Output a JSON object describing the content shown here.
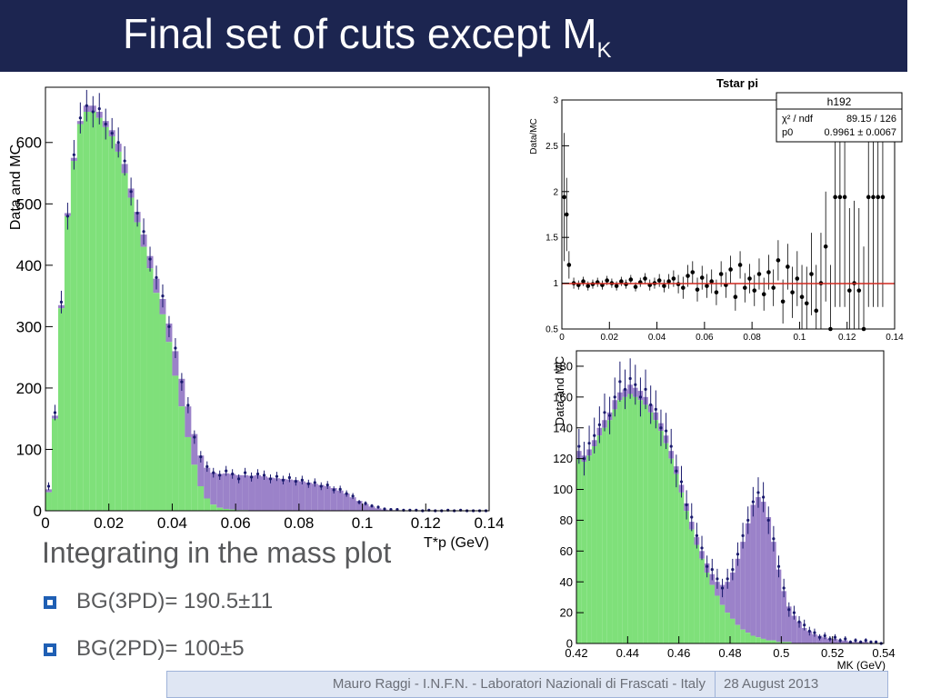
{
  "slide": {
    "title": "Final set of cuts except M",
    "title_sub": "K",
    "text": "Integrating in the mass plot",
    "bullets": [
      "BG(3PD)= 190.5±11",
      "BG(2PD)=  100±5"
    ],
    "footer_left": "Mauro Raggi - I.N.F.N. - Laboratori Nazionali di Frascati - Italy",
    "footer_right": "28 August 2013",
    "colors": {
      "title_bg": "#1c2550",
      "mc_signal": "#7fe07a",
      "mc_background": "#9b82c9",
      "data": "#1a1a6e",
      "fit_line": "#d0281e",
      "bullet": "#1f5fb4"
    }
  },
  "chart_data": [
    {
      "type": "histogram",
      "title": "",
      "xlabel": "T*p (GeV)",
      "ylabel": "Data and MC",
      "xlim": [
        0,
        0.14
      ],
      "ylim": [
        0,
        690
      ],
      "xticks": [
        "0",
        "0.02",
        "0.04",
        "0.06",
        "0.08",
        "0.1",
        "0.12",
        "0.14"
      ],
      "yticks": [
        "0",
        "100",
        "200",
        "300",
        "400",
        "500",
        "600"
      ],
      "x": [
        0.0,
        0.002,
        0.004,
        0.006,
        0.008,
        0.01,
        0.012,
        0.014,
        0.016,
        0.018,
        0.02,
        0.022,
        0.024,
        0.026,
        0.028,
        0.03,
        0.032,
        0.034,
        0.036,
        0.038,
        0.04,
        0.042,
        0.044,
        0.046,
        0.048,
        0.05,
        0.052,
        0.054,
        0.056,
        0.058,
        0.06,
        0.062,
        0.064,
        0.066,
        0.068,
        0.07,
        0.072,
        0.074,
        0.076,
        0.078,
        0.08,
        0.082,
        0.084,
        0.086,
        0.088,
        0.09,
        0.092,
        0.094,
        0.096,
        0.098,
        0.1,
        0.102,
        0.104,
        0.106,
        0.108,
        0.11,
        0.112,
        0.114,
        0.116,
        0.118,
        0.12,
        0.122,
        0.124,
        0.126,
        0.128,
        0.13,
        0.132,
        0.134,
        0.136,
        0.138
      ],
      "series": [
        {
          "name": "",
          "style": "mc-signal",
          "values": [
            30,
            150,
            330,
            480,
            570,
            630,
            650,
            650,
            640,
            625,
            610,
            585,
            550,
            510,
            470,
            430,
            395,
            355,
            320,
            275,
            220,
            170,
            120,
            75,
            40,
            20,
            10,
            5,
            3,
            2,
            1,
            1,
            0,
            0,
            0,
            0,
            0,
            0,
            0,
            0,
            0,
            0,
            0,
            0,
            0,
            0,
            0,
            0,
            0,
            0,
            0,
            0,
            0,
            0,
            0,
            0,
            0,
            0,
            0,
            0,
            0,
            0,
            0,
            0,
            0,
            0,
            0,
            0,
            0,
            0
          ]
        },
        {
          "name": "",
          "style": "mc-total",
          "values": [
            35,
            155,
            335,
            485,
            575,
            635,
            660,
            660,
            650,
            635,
            620,
            598,
            565,
            525,
            487,
            450,
            415,
            378,
            345,
            305,
            260,
            215,
            170,
            125,
            90,
            70,
            62,
            60,
            61,
            60,
            58,
            58,
            57,
            58,
            56,
            54,
            53,
            52,
            51,
            50,
            48,
            46,
            44,
            42,
            40,
            37,
            33,
            28,
            22,
            16,
            11,
            7,
            4,
            2,
            1,
            1,
            0,
            0,
            0,
            0,
            0,
            0,
            0,
            0,
            0,
            0,
            0,
            0,
            0,
            0
          ]
        },
        {
          "name": "",
          "style": "data-points",
          "values": [
            40,
            160,
            340,
            480,
            580,
            640,
            660,
            650,
            655,
            630,
            615,
            600,
            570,
            520,
            485,
            455,
            410,
            380,
            350,
            300,
            265,
            210,
            172,
            120,
            88,
            72,
            62,
            58,
            65,
            60,
            52,
            62,
            55,
            60,
            58,
            52,
            56,
            50,
            54,
            48,
            50,
            44,
            46,
            40,
            42,
            34,
            35,
            28,
            24,
            14,
            12,
            8,
            6,
            3,
            2,
            2,
            1,
            1,
            1,
            0,
            1,
            0,
            0,
            1,
            0,
            1,
            0,
            0,
            0,
            0
          ]
        }
      ]
    },
    {
      "type": "scatter",
      "title": "Tstar pi",
      "xlabel": "",
      "ylabel": "Data/MC",
      "xlim": [
        0,
        0.14
      ],
      "ylim": [
        0.5,
        3
      ],
      "xticks": [
        "0",
        "0.02",
        "0.04",
        "0.06",
        "0.08",
        "0.1",
        "0.12",
        "0.14"
      ],
      "yticks": [
        "0.5",
        "1",
        "1.5",
        "2",
        "2.5",
        "3"
      ],
      "stats": {
        "name": "h192",
        "rows": [
          {
            "label": "χ² / ndf",
            "value": "89.15 / 126"
          },
          {
            "label": "p0",
            "value": "0.9961 ± 0.0067"
          }
        ]
      },
      "fit": {
        "value": 0.9961
      },
      "x": [
        0.001,
        0.002,
        0.003,
        0.005,
        0.007,
        0.009,
        0.011,
        0.013,
        0.015,
        0.017,
        0.019,
        0.021,
        0.023,
        0.025,
        0.027,
        0.029,
        0.031,
        0.033,
        0.035,
        0.037,
        0.039,
        0.041,
        0.043,
        0.045,
        0.047,
        0.049,
        0.051,
        0.053,
        0.055,
        0.057,
        0.059,
        0.061,
        0.063,
        0.065,
        0.067,
        0.069,
        0.071,
        0.073,
        0.075,
        0.077,
        0.079,
        0.081,
        0.083,
        0.085,
        0.087,
        0.089,
        0.091,
        0.093,
        0.095,
        0.097,
        0.099,
        0.101,
        0.103,
        0.105,
        0.107,
        0.109,
        0.111,
        0.113,
        0.115,
        0.117,
        0.119,
        0.121,
        0.123,
        0.125,
        0.127,
        0.129,
        0.131,
        0.133,
        0.135
      ],
      "y": [
        1.94,
        1.75,
        1.2,
        1.0,
        0.98,
        1.02,
        0.97,
        0.99,
        1.01,
        0.98,
        1.03,
        1.0,
        0.97,
        1.02,
        0.99,
        1.04,
        0.96,
        1.01,
        1.05,
        0.98,
        1.0,
        1.03,
        0.97,
        1.02,
        1.05,
        0.99,
        0.95,
        1.08,
        1.12,
        0.93,
        1.06,
        0.97,
        1.02,
        0.9,
        1.1,
        0.98,
        1.15,
        0.85,
        1.2,
        0.95,
        1.05,
        0.92,
        1.1,
        0.88,
        1.12,
        0.95,
        1.25,
        0.8,
        1.18,
        0.9,
        1.05,
        0.85,
        0.78,
        1.1,
        0.7,
        1.0,
        1.4,
        0.5,
        1.94,
        1.94,
        1.94,
        0.92,
        1.0,
        0.92,
        0.5,
        1.94,
        1.94,
        1.94,
        1.94
      ],
      "yerr": [
        0.7,
        0.4,
        0.15,
        0.06,
        0.05,
        0.05,
        0.05,
        0.05,
        0.05,
        0.05,
        0.05,
        0.05,
        0.05,
        0.05,
        0.05,
        0.05,
        0.05,
        0.05,
        0.06,
        0.06,
        0.06,
        0.07,
        0.07,
        0.08,
        0.09,
        0.1,
        0.12,
        0.12,
        0.12,
        0.13,
        0.13,
        0.13,
        0.13,
        0.14,
        0.14,
        0.14,
        0.15,
        0.15,
        0.15,
        0.16,
        0.16,
        0.17,
        0.17,
        0.18,
        0.19,
        0.2,
        0.22,
        0.24,
        0.25,
        0.28,
        0.3,
        0.35,
        0.4,
        0.45,
        0.5,
        0.55,
        0.6,
        0.7,
        1.2,
        1.2,
        1.2,
        0.9,
        0.9,
        0.9,
        0.9,
        1.2,
        1.2,
        1.2,
        1.2
      ]
    },
    {
      "type": "histogram",
      "title": "",
      "xlabel": "MK (GeV)",
      "ylabel": "Data and MC",
      "xlim": [
        0.42,
        0.54
      ],
      "ylim": [
        0,
        190
      ],
      "xticks": [
        "0.42",
        "0.44",
        "0.46",
        "0.48",
        "0.5",
        "0.52",
        "0.54"
      ],
      "yticks": [
        "0",
        "20",
        "40",
        "60",
        "80",
        "100",
        "120",
        "140",
        "160",
        "180"
      ],
      "x": [
        0.42,
        0.422,
        0.424,
        0.426,
        0.428,
        0.43,
        0.432,
        0.434,
        0.436,
        0.438,
        0.44,
        0.442,
        0.444,
        0.446,
        0.448,
        0.45,
        0.452,
        0.454,
        0.456,
        0.458,
        0.46,
        0.462,
        0.464,
        0.466,
        0.468,
        0.47,
        0.472,
        0.474,
        0.476,
        0.478,
        0.48,
        0.482,
        0.484,
        0.486,
        0.488,
        0.49,
        0.492,
        0.494,
        0.496,
        0.498,
        0.5,
        0.502,
        0.504,
        0.506,
        0.508,
        0.51,
        0.512,
        0.514,
        0.516,
        0.518,
        0.52,
        0.522,
        0.524,
        0.526,
        0.528,
        0.53,
        0.532,
        0.534,
        0.536,
        0.538
      ],
      "series": [
        {
          "name": "",
          "style": "mc-signal",
          "values": [
            120,
            118,
            122,
            128,
            135,
            140,
            145,
            152,
            158,
            160,
            162,
            160,
            158,
            155,
            150,
            145,
            138,
            130,
            120,
            110,
            98,
            86,
            74,
            64,
            55,
            46,
            38,
            31,
            25,
            20,
            16,
            12,
            9,
            7,
            5,
            4,
            3,
            2,
            2,
            1,
            1,
            1,
            0,
            0,
            0,
            0,
            0,
            0,
            0,
            0,
            0,
            0,
            0,
            0,
            0,
            0,
            0,
            0,
            0,
            0
          ]
        },
        {
          "name": "",
          "style": "mc-total",
          "values": [
            125,
            122,
            126,
            132,
            140,
            145,
            150,
            158,
            163,
            165,
            168,
            166,
            164,
            160,
            155,
            150,
            143,
            135,
            125,
            115,
            103,
            91,
            79,
            69,
            60,
            52,
            45,
            40,
            38,
            40,
            46,
            55,
            66,
            78,
            90,
            95,
            92,
            82,
            66,
            48,
            34,
            24,
            18,
            14,
            10,
            8,
            6,
            5,
            4,
            3,
            3,
            2,
            2,
            1,
            1,
            1,
            1,
            0,
            0,
            0
          ]
        },
        {
          "name": "",
          "style": "data-points",
          "values": [
            128,
            120,
            130,
            135,
            142,
            150,
            148,
            160,
            170,
            165,
            172,
            168,
            160,
            165,
            155,
            152,
            140,
            138,
            128,
            112,
            105,
            90,
            82,
            70,
            62,
            50,
            48,
            42,
            36,
            42,
            48,
            58,
            70,
            80,
            92,
            98,
            95,
            80,
            68,
            50,
            36,
            22,
            20,
            14,
            12,
            8,
            7,
            4,
            5,
            3,
            4,
            2,
            3,
            1,
            2,
            1,
            2,
            1,
            1,
            0
          ]
        }
      ]
    }
  ]
}
